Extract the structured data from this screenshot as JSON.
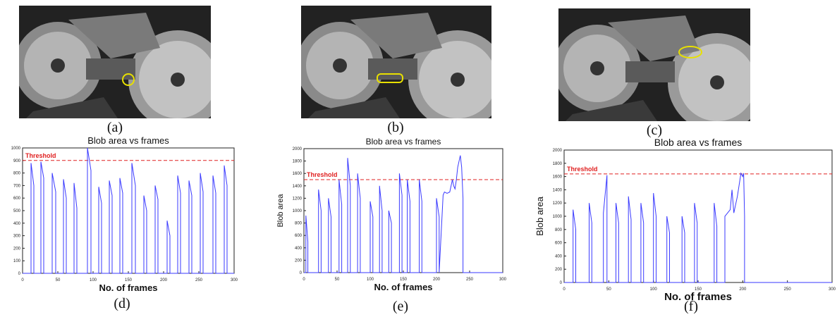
{
  "captions": {
    "a": "(a)",
    "b": "(b)",
    "c": "(c)",
    "d": "(d)",
    "e": "(e)",
    "f": "(f)"
  },
  "colors": {
    "series": "#3a3aff",
    "threshold": "#e02020",
    "photo_dark": "#1c1c1c",
    "highlight": "#e8e000"
  },
  "chart_data": [
    {
      "type": "line",
      "title": "Blob area vs frames",
      "xlabel": "No. of frames",
      "ylabel": "",
      "xlim": [
        0,
        300
      ],
      "ylim": [
        0,
        1000
      ],
      "xticks": [
        0,
        50,
        100,
        150,
        200,
        250,
        300
      ],
      "yticks": [
        0,
        100,
        200,
        300,
        400,
        500,
        600,
        700,
        800,
        900,
        1000
      ],
      "threshold": {
        "label": "Threshold",
        "value": 900
      },
      "grid": false,
      "series": [
        {
          "x": [
            0,
            12,
            12,
            16,
            16,
            26,
            26,
            30,
            30,
            42,
            42,
            47,
            47,
            58,
            58,
            62,
            62,
            73,
            73,
            77,
            77,
            92,
            92,
            97,
            97,
            108,
            108,
            112,
            112,
            123,
            123,
            127,
            127,
            138,
            138,
            142,
            142,
            155,
            155,
            160,
            160,
            172,
            172,
            176,
            176,
            188,
            188,
            192,
            192,
            205,
            205,
            209,
            209,
            220,
            220,
            224,
            224,
            236,
            236,
            240,
            240,
            252,
            252,
            256,
            256,
            270,
            270,
            274,
            274,
            286,
            286,
            290,
            290,
            300
          ],
          "y": [
            0,
            0,
            880,
            700,
            0,
            0,
            890,
            760,
            0,
            0,
            800,
            650,
            0,
            0,
            750,
            600,
            0,
            0,
            720,
            520,
            0,
            0,
            1000,
            820,
            0,
            0,
            690,
            560,
            0,
            0,
            740,
            620,
            0,
            0,
            760,
            640,
            0,
            0,
            880,
            700,
            0,
            0,
            620,
            500,
            0,
            0,
            700,
            590,
            0,
            0,
            420,
            300,
            0,
            0,
            780,
            640,
            0,
            0,
            740,
            620,
            0,
            0,
            800,
            650,
            0,
            0,
            780,
            640,
            0,
            0,
            860,
            700,
            0,
            0
          ]
        }
      ]
    },
    {
      "type": "line",
      "title": "Blob area vs frames",
      "xlabel": "No. of frames",
      "ylabel": "Blob area",
      "xlim": [
        0,
        300
      ],
      "ylim": [
        0,
        2000
      ],
      "xticks": [
        0,
        50,
        100,
        150,
        200,
        250,
        300
      ],
      "yticks": [
        0,
        200,
        400,
        600,
        800,
        1000,
        1200,
        1400,
        1600,
        1800,
        2000
      ],
      "threshold": {
        "label": "Threshold",
        "value": 1500
      },
      "grid": false,
      "series": [
        {
          "x": [
            0,
            3,
            3,
            6,
            6,
            22,
            22,
            26,
            26,
            37,
            37,
            41,
            41,
            53,
            53,
            57,
            57,
            66,
            66,
            70,
            70,
            81,
            81,
            85,
            85,
            100,
            100,
            104,
            104,
            114,
            114,
            118,
            118,
            128,
            128,
            132,
            132,
            144,
            144,
            148,
            148,
            156,
            156,
            160,
            160,
            174,
            174,
            178,
            178,
            200,
            200,
            204,
            204,
            210,
            212,
            216,
            220,
            224,
            226,
            228,
            230,
            232,
            236,
            238,
            240,
            240,
            300
          ],
          "y": [
            0,
            0,
            920,
            500,
            0,
            0,
            1340,
            1000,
            0,
            0,
            1200,
            900,
            0,
            0,
            1500,
            1100,
            0,
            0,
            1850,
            1400,
            0,
            0,
            1600,
            1200,
            0,
            0,
            1150,
            900,
            0,
            0,
            1400,
            1000,
            0,
            0,
            1000,
            800,
            0,
            0,
            1600,
            1250,
            0,
            0,
            1500,
            1150,
            0,
            0,
            1500,
            1150,
            0,
            0,
            1200,
            900,
            0,
            1250,
            1300,
            1280,
            1300,
            1500,
            1400,
            1350,
            1500,
            1700,
            1890,
            1700,
            1200,
            0,
            0
          ]
        }
      ]
    },
    {
      "type": "line",
      "title": "Blob area vs frames",
      "xlabel": "No. of frames",
      "ylabel": "Blob area",
      "xlim": [
        0,
        300
      ],
      "ylim": [
        0,
        2000
      ],
      "xticks": [
        0,
        50,
        100,
        150,
        200,
        250,
        300
      ],
      "yticks": [
        0,
        200,
        400,
        600,
        800,
        1000,
        1200,
        1400,
        1600,
        1800,
        2000
      ],
      "threshold": {
        "label": "Threshold",
        "value": 1640
      },
      "grid": false,
      "series": [
        {
          "x": [
            0,
            10,
            10,
            13,
            13,
            28,
            28,
            31,
            31,
            44,
            44,
            48,
            48,
            58,
            58,
            61,
            61,
            72,
            72,
            75,
            75,
            86,
            86,
            89,
            89,
            100,
            100,
            103,
            103,
            115,
            115,
            118,
            118,
            132,
            132,
            135,
            135,
            146,
            146,
            149,
            149,
            168,
            168,
            171,
            171,
            180,
            180,
            186,
            188,
            190,
            194,
            198,
            200,
            201,
            202,
            202,
            300
          ],
          "y": [
            0,
            0,
            1100,
            800,
            0,
            0,
            1200,
            900,
            0,
            0,
            1050,
            1620,
            0,
            0,
            1200,
            900,
            0,
            0,
            1300,
            950,
            0,
            0,
            1200,
            900,
            0,
            0,
            1350,
            1000,
            0,
            0,
            1000,
            750,
            0,
            0,
            1000,
            750,
            0,
            0,
            1200,
            900,
            0,
            0,
            1200,
            850,
            0,
            0,
            1000,
            1100,
            1400,
            1050,
            1300,
            1650,
            1600,
            1650,
            1000,
            0,
            0
          ]
        }
      ]
    }
  ]
}
